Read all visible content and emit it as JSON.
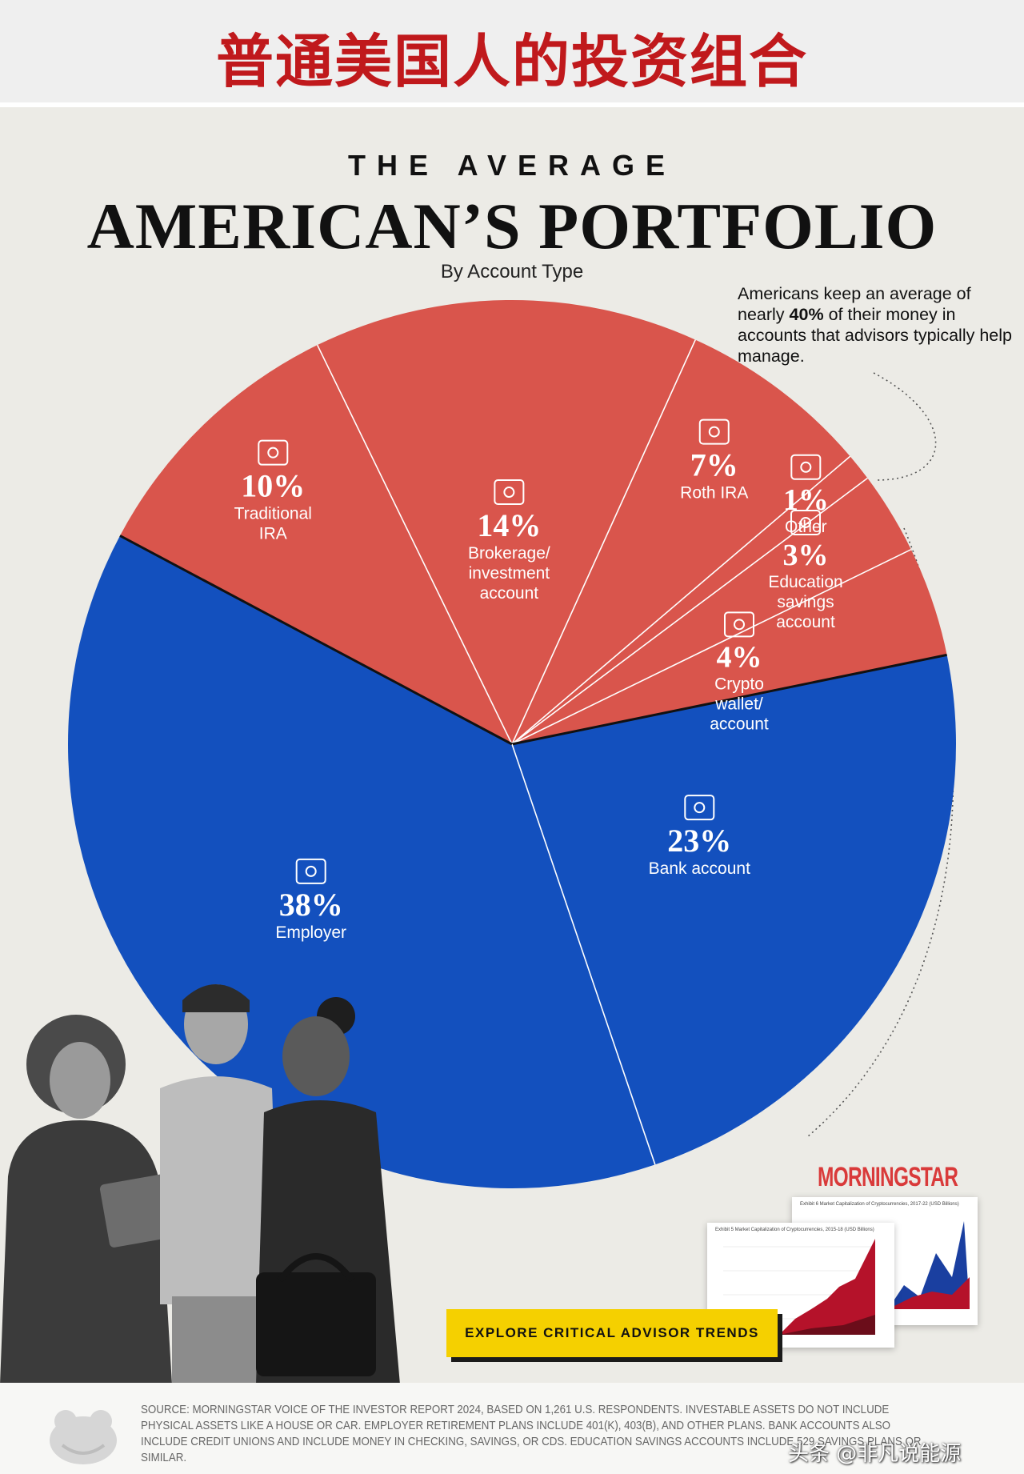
{
  "banner": {
    "title": "普通美国人的投资组合"
  },
  "header": {
    "kicker": "THE AVERAGE",
    "title": "AMERICAN’S PORTFOLIO",
    "subtitle": "By Account Type"
  },
  "note": {
    "text_before": "Americans keep an average of nearly ",
    "highlight": "40%",
    "text_after": " of their money in accounts that advisors typically help manage."
  },
  "chart_data": {
    "type": "pie",
    "title": "THE AVERAGE AMERICAN’S PORTFOLIO",
    "subtitle": "By Account Type",
    "unit": "%",
    "slices": [
      {
        "label": "Traditional IRA",
        "pct_text": "10%",
        "value": 10,
        "color": "#d9554c",
        "group": "advisor",
        "icon": "safe-tax-icon"
      },
      {
        "label": "Brokerage/ investment account",
        "pct_text": "14%",
        "value": 14,
        "color": "#d9554c",
        "group": "advisor",
        "icon": "growth-chart-icon"
      },
      {
        "label": "Roth IRA",
        "pct_text": "7%",
        "value": 7,
        "color": "#d9554c",
        "group": "advisor",
        "icon": "tax-safe-icon"
      },
      {
        "label": "Other",
        "pct_text": "1%",
        "value": 1,
        "color": "#d9554c",
        "group": "advisor",
        "icon": "magnifier-icon"
      },
      {
        "label": "Education savings account",
        "pct_text": "3%",
        "value": 3,
        "color": "#d9554c",
        "group": "advisor",
        "icon": "graduation-cap-icon"
      },
      {
        "label": "Crypto wallet/ account",
        "pct_text": "4%",
        "value": 4,
        "color": "#d9554c",
        "group": "advisor",
        "icon": "wallet-icon"
      },
      {
        "label": "Bank account",
        "pct_text": "23%",
        "value": 23,
        "color": "#1350be",
        "group": "self",
        "icon": "bank-icon"
      },
      {
        "label": "Employer",
        "pct_text": "38%",
        "value": 38,
        "color": "#1350be",
        "group": "self",
        "icon": "people-icon"
      }
    ]
  },
  "promo": {
    "brand": "MORNINGSTAR",
    "cta_label": "EXPLORE CRITICAL ADVISOR TRENDS",
    "doc_back_title": "Exhibit 6 Market Capitalization of Cryptocurrencies, 2017-22 (USD Billions)",
    "doc_front_title": "Exhibit 5 Market Capitalization of Cryptocurrencies, 2015-18 (USD Billions)",
    "colors": {
      "cta": "#f5d000",
      "brand": "#d93a3a",
      "chart_fill": "#b5122a",
      "chart_fill_2": "#1a3fa0"
    }
  },
  "footer": {
    "source": "SOURCE: MORNINGSTAR VOICE OF THE INVESTOR REPORT 2024, BASED ON 1,261 U.S. RESPONDENTS. INVESTABLE ASSETS DO NOT INCLUDE PHYSICAL ASSETS LIKE A HOUSE OR CAR. EMPLOYER RETIREMENT PLANS INCLUDE 401(K), 403(B), AND OTHER PLANS. BANK ACCOUNTS ALSO INCLUDE CREDIT UNIONS AND INCLUDE MONEY IN CHECKING, SAVINGS, OR CDS. EDUCATION SAVINGS ACCOUNTS INCLUDE 529 SAVINGS PLANS OR SIMILAR.",
    "watermark": "头条 @非凡说能源"
  },
  "colors": {
    "banner_title": "#c0191c",
    "panel_bg": "#ecebe6",
    "red": "#d9554c",
    "blue": "#1350be"
  }
}
